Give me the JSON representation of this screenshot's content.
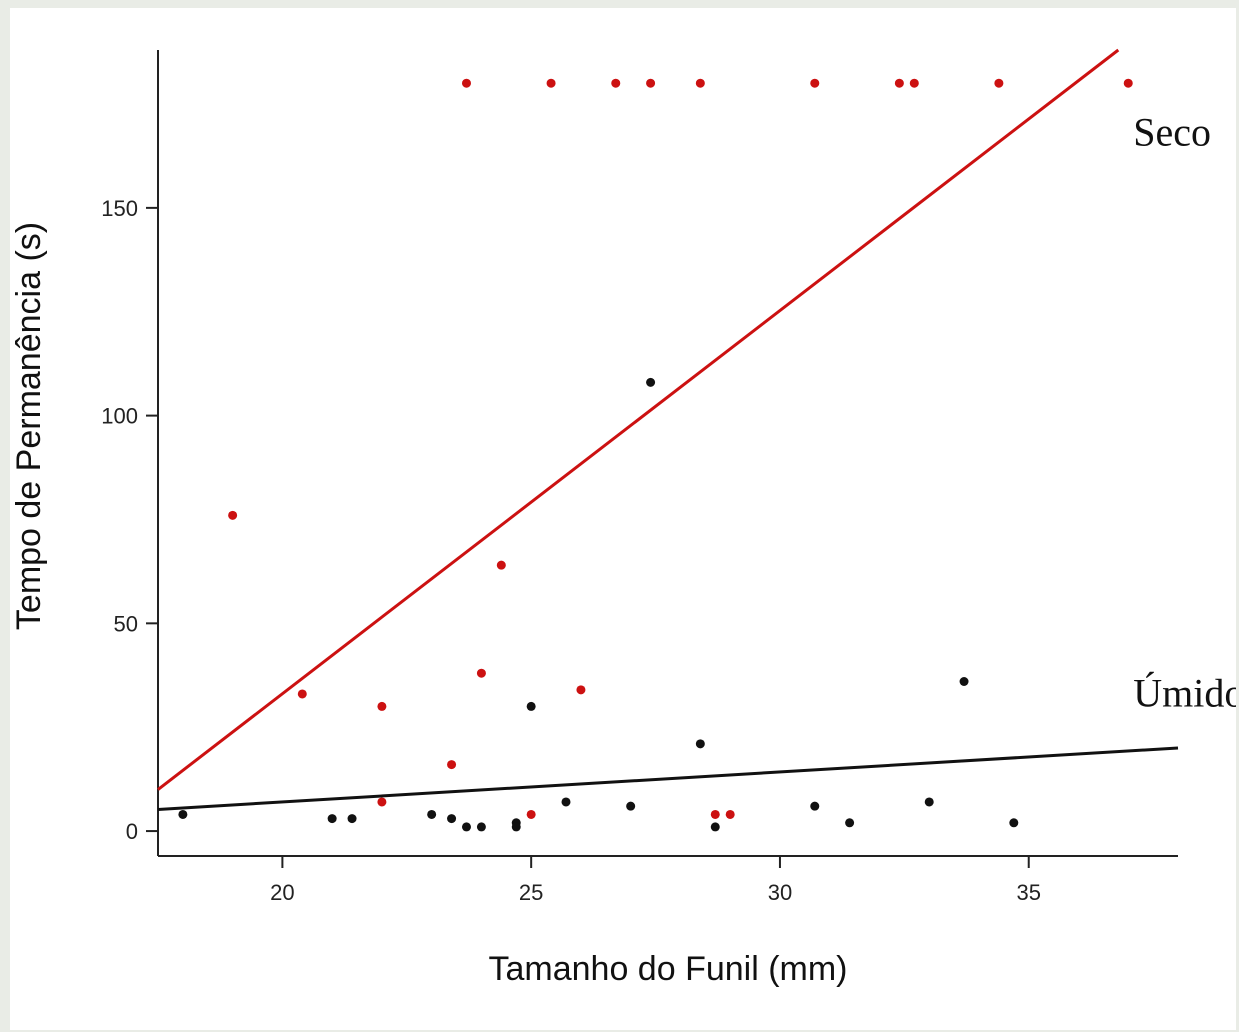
{
  "chart_data": {
    "type": "scatter",
    "title": "",
    "xlabel": "Tamanho do Funil (mm)",
    "ylabel": "Tempo de Permanência (s)",
    "xlim": [
      17.5,
      38
    ],
    "ylim": [
      -6,
      188
    ],
    "x_ticks": [
      20,
      25,
      30,
      35
    ],
    "y_ticks": [
      0,
      50,
      100,
      150
    ],
    "grid": false,
    "legend": "none",
    "series": [
      {
        "name": "Seco",
        "color": "#cc1111",
        "points": [
          {
            "x": 23.7,
            "y": 180
          },
          {
            "x": 25.4,
            "y": 180
          },
          {
            "x": 26.7,
            "y": 180
          },
          {
            "x": 27.4,
            "y": 180
          },
          {
            "x": 28.4,
            "y": 180
          },
          {
            "x": 30.7,
            "y": 180
          },
          {
            "x": 32.4,
            "y": 180
          },
          {
            "x": 32.7,
            "y": 180
          },
          {
            "x": 34.4,
            "y": 180
          },
          {
            "x": 37.0,
            "y": 180
          },
          {
            "x": 19.0,
            "y": 76
          },
          {
            "x": 24.4,
            "y": 64
          },
          {
            "x": 24.0,
            "y": 38
          },
          {
            "x": 26.0,
            "y": 34
          },
          {
            "x": 20.4,
            "y": 33
          },
          {
            "x": 22.0,
            "y": 30
          },
          {
            "x": 23.4,
            "y": 16
          },
          {
            "x": 22.0,
            "y": 7
          },
          {
            "x": 25.0,
            "y": 4
          },
          {
            "x": 28.7,
            "y": 4
          },
          {
            "x": 29.0,
            "y": 4
          }
        ],
        "fit": {
          "x": [
            17.5,
            36.8
          ],
          "y": [
            10,
            188
          ]
        }
      },
      {
        "name": "Úmido",
        "color": "#111111",
        "points": [
          {
            "x": 27.4,
            "y": 108
          },
          {
            "x": 33.7,
            "y": 36
          },
          {
            "x": 25.0,
            "y": 30
          },
          {
            "x": 28.4,
            "y": 21
          },
          {
            "x": 25.7,
            "y": 7
          },
          {
            "x": 33.0,
            "y": 7
          },
          {
            "x": 27.0,
            "y": 6
          },
          {
            "x": 30.7,
            "y": 6
          },
          {
            "x": 18.0,
            "y": 4
          },
          {
            "x": 23.0,
            "y": 4
          },
          {
            "x": 21.0,
            "y": 3
          },
          {
            "x": 21.4,
            "y": 3
          },
          {
            "x": 23.4,
            "y": 3
          },
          {
            "x": 24.7,
            "y": 2
          },
          {
            "x": 31.4,
            "y": 2
          },
          {
            "x": 34.7,
            "y": 2
          },
          {
            "x": 23.7,
            "y": 1
          },
          {
            "x": 24.0,
            "y": 1
          },
          {
            "x": 24.7,
            "y": 1
          },
          {
            "x": 28.7,
            "y": 1
          }
        ],
        "fit": {
          "x": [
            17.5,
            38
          ],
          "y": [
            5.2,
            20
          ]
        }
      }
    ],
    "annotations": [
      {
        "text": "Seco",
        "x": 37.1,
        "y": 165
      },
      {
        "text": "Úmido",
        "x": 37.1,
        "y": 30
      }
    ]
  }
}
